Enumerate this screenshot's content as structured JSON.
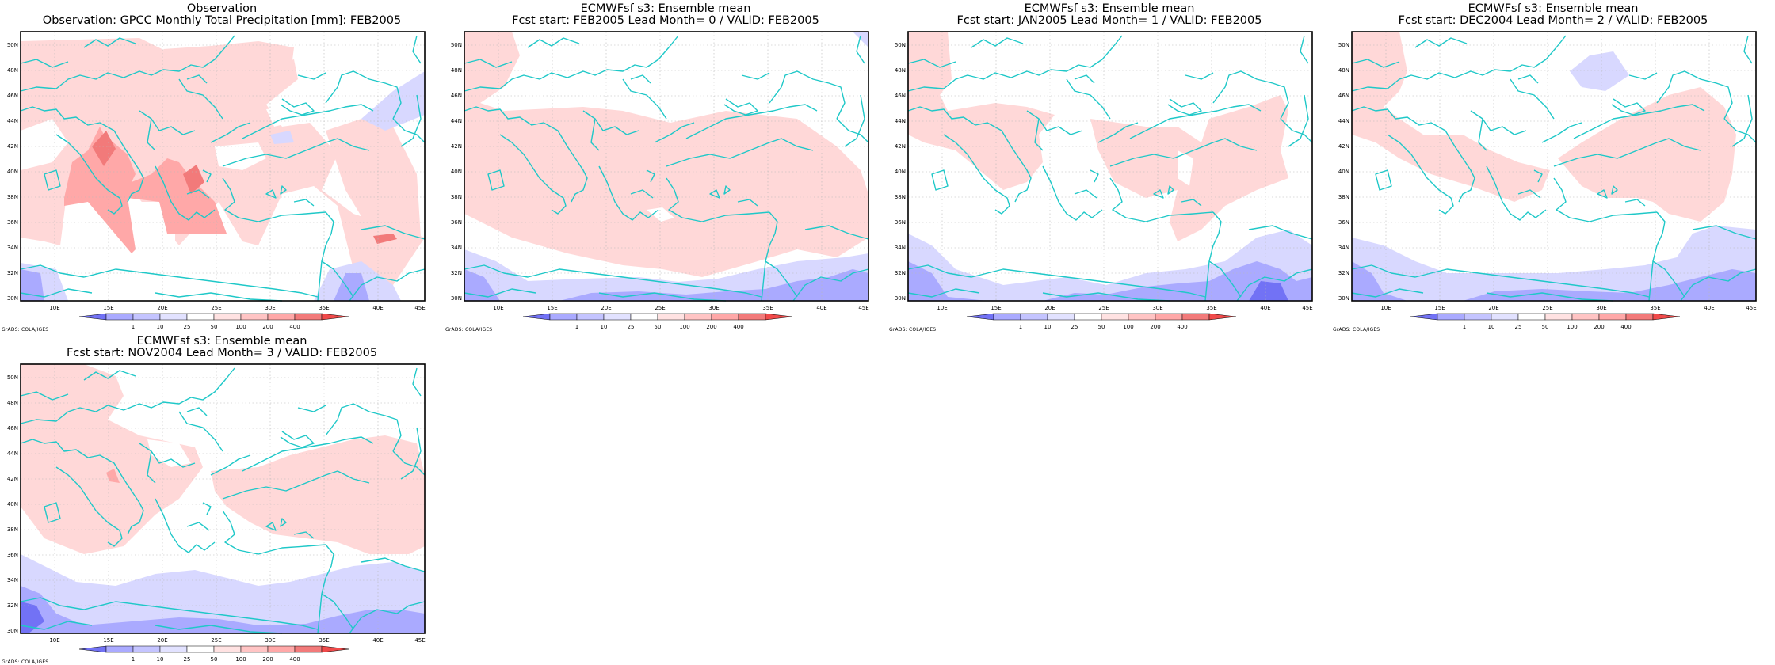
{
  "colors": {
    "blue_light": "#d8d8ff",
    "blue_mid": "#aaaaff",
    "blue_dark": "#7272f5",
    "red_light": "#ffd8d8",
    "red_mid": "#ffa8a8",
    "red_dark": "#f27a7a",
    "coast": "#1fc8c8",
    "grid": "#b8b8b8"
  },
  "credit": "GrADS: COLA/IGES",
  "lon_ticks": [
    "10E",
    "15E",
    "20E",
    "25E",
    "30E",
    "35E",
    "40E",
    "45E"
  ],
  "lat_ticks": [
    "50N",
    "48N",
    "46N",
    "44N",
    "42N",
    "40N",
    "38N",
    "36N",
    "34N",
    "32N",
    "30N"
  ],
  "colorbar_labels": [
    "1",
    "10",
    "25",
    "50",
    "100",
    "200",
    "400"
  ],
  "panels": [
    {
      "title1": "Observation",
      "title2": "Observation: GPCC Monthly Total Precipitation [mm]: FEB2005"
    },
    {
      "title1": "ECMWFsf s3: Ensemble mean",
      "title2": "Fcst start: FEB2005   Lead Month= 0 / VALID: FEB2005"
    },
    {
      "title1": "ECMWFsf s3: Ensemble mean",
      "title2": "Fcst start: JAN2005   Lead Month= 1 / VALID: FEB2005"
    },
    {
      "title1": "ECMWFsf s3: Ensemble mean",
      "title2": "Fcst start: DEC2004   Lead Month= 2 / VALID: FEB2005"
    },
    {
      "title1": "ECMWFsf s3: Ensemble mean",
      "title2": "Fcst start: NOV2004   Lead Month= 3 / VALID: FEB2005"
    }
  ]
}
